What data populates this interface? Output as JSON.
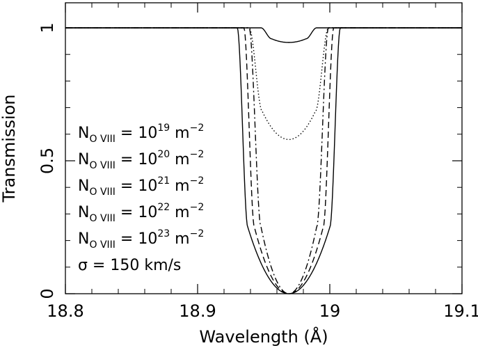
{
  "chart_data": {
    "type": "line",
    "xlabel": "Wavelength (Å)",
    "ylabel": "Transmission",
    "xlim": [
      18.8,
      19.1
    ],
    "ylim": [
      0,
      1.05
    ],
    "x_ticks": [
      18.8,
      18.9,
      19.0,
      19.1
    ],
    "x_tick_labels": [
      "18.8",
      "18.9",
      "19",
      "19.1"
    ],
    "y_ticks": [
      0,
      0.5,
      1
    ],
    "y_tick_labels": [
      "0",
      "0.5",
      "1"
    ],
    "grid": false,
    "legend_position": "left",
    "line_center": 18.969,
    "series": [
      {
        "label_main": "N",
        "label_sub": "O VIII",
        "label_eq": "= 10",
        "label_exp": "19",
        "label_unit": "m",
        "label_unit_exp": "−2",
        "linestyle": "solid",
        "min_value": 0.945,
        "half_width_1": 0.013,
        "half_width_2": 0.021
      },
      {
        "label_main": "N",
        "label_sub": "O VIII",
        "label_eq": "= 10",
        "label_exp": "20",
        "label_unit": "m",
        "label_unit_exp": "−2",
        "linestyle": "dotted",
        "min_value": 0.58,
        "half_width_1": 0.02,
        "half_width_2": 0.03
      },
      {
        "label_main": "N",
        "label_sub": "O VIII",
        "label_eq": "= 10",
        "label_exp": "21",
        "label_unit": "m",
        "label_unit_exp": "−2",
        "linestyle": "dashdot",
        "min_value": 0.0,
        "half_width_1": 0.021,
        "half_width_2": 0.03
      },
      {
        "label_main": "N",
        "label_sub": "O VIII",
        "label_eq": "= 10",
        "label_exp": "22",
        "label_unit": "m",
        "label_unit_exp": "−2",
        "linestyle": "dashed",
        "min_value": 0.0,
        "half_width_1": 0.026,
        "half_width_2": 0.034
      },
      {
        "label_main": "N",
        "label_sub": "O VIII",
        "label_eq": "= 10",
        "label_exp": "23",
        "label_unit": "m",
        "label_unit_exp": "−2",
        "linestyle": "solid",
        "min_value": 0.0,
        "half_width_1": 0.031,
        "half_width_2": 0.039
      }
    ],
    "annotation": "σ = 150 km/s"
  }
}
